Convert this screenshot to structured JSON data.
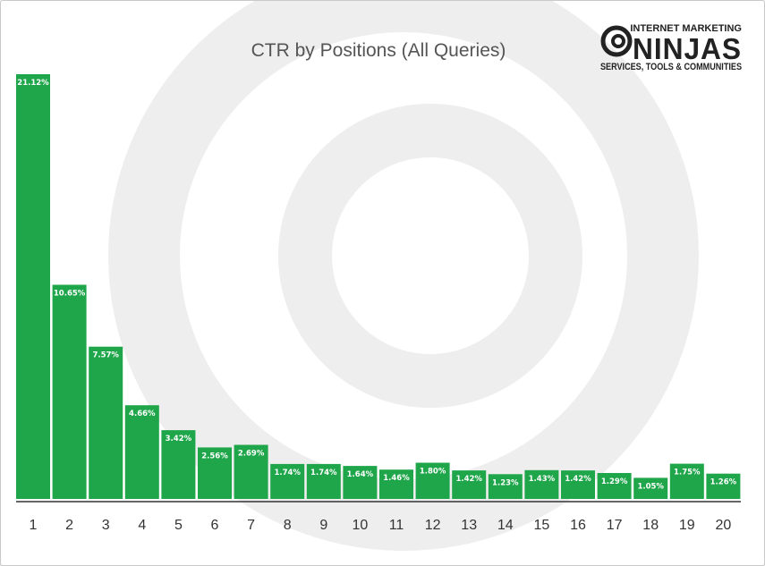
{
  "logo": {
    "line1": "INTERNET MARKETING",
    "line2": "NINJAS",
    "line3": "SERVICES, TOOLS & COMMUNITIES"
  },
  "chart_data": {
    "type": "bar",
    "title": "CTR by Positions (All Queries)",
    "xlabel": "",
    "ylabel": "",
    "categories": [
      "1",
      "2",
      "3",
      "4",
      "5",
      "6",
      "7",
      "8",
      "9",
      "10",
      "11",
      "12",
      "13",
      "14",
      "15",
      "16",
      "17",
      "18",
      "19",
      "20"
    ],
    "values": [
      21.12,
      10.65,
      7.57,
      4.66,
      3.42,
      2.56,
      2.69,
      1.74,
      1.74,
      1.64,
      1.46,
      1.8,
      1.42,
      1.23,
      1.43,
      1.42,
      1.29,
      1.05,
      1.75,
      1.26
    ],
    "labels": [
      "21.12%",
      "10.65%",
      "7.57%",
      "4.66%",
      "3.42%",
      "2.56%",
      "2.69%",
      "1.74%",
      "1.74%",
      "1.64%",
      "1.46%",
      "1.80%",
      "1.42%",
      "1.23%",
      "1.43%",
      "1.42%",
      "1.29%",
      "1.05%",
      "1.75%",
      "1.26%"
    ],
    "ylim": [
      0,
      21.12
    ],
    "grid": false,
    "colors": {
      "bar": "#1fa64a",
      "watermark": "#eeeeee",
      "axis": "#333333"
    }
  }
}
